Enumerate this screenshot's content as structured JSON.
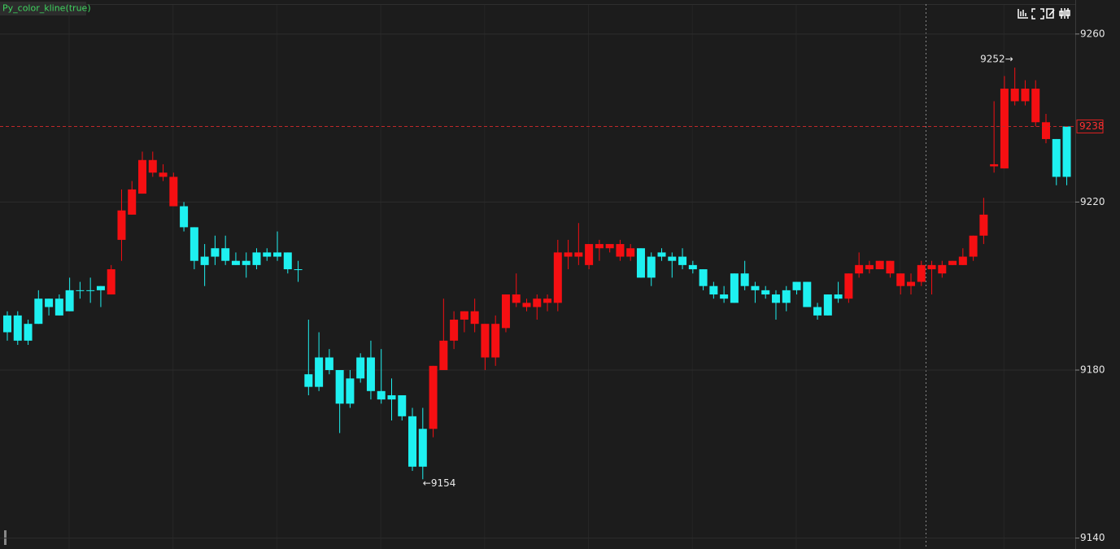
{
  "chart_data": {
    "type": "candlestick",
    "title": "Py_color_kline(true)",
    "up_color": "#f50f12",
    "down_color": "#1ef0f0",
    "open": [
      9193,
      9193,
      9191,
      9197,
      9197,
      9197,
      9199,
      9199,
      9199,
      9200,
      9198,
      9211,
      9217,
      9222,
      9227,
      9226,
      9219,
      9219,
      9214,
      9207,
      9209,
      9209,
      9206,
      9206,
      9208,
      9208,
      9208,
      9208,
      9204,
      9179,
      9183,
      9183,
      9180,
      9178,
      9183,
      9183,
      9175,
      9174,
      9174,
      9169,
      9166,
      9166,
      9180,
      9187,
      9192,
      9191,
      9183,
      9183,
      9190,
      9196,
      9195,
      9195,
      9196,
      9196,
      9207,
      9207,
      9205,
      9209,
      9209,
      9207,
      9207,
      9209,
      9207,
      9208,
      9207,
      9207,
      9205,
      9204,
      9200,
      9198,
      9203,
      9203,
      9200,
      9199,
      9198,
      9199,
      9201,
      9201,
      9195,
      9198,
      9198,
      9197,
      9203,
      9204,
      9204,
      9203,
      9200,
      9200,
      9201,
      9204,
      9203,
      9205,
      9205,
      9207,
      9212,
      9228.5,
      9228,
      9244,
      9244,
      9239,
      9235,
      9235,
      9238
    ],
    "high": [
      9194,
      9194,
      9192,
      9199,
      9197,
      9198,
      9202,
      9201,
      9202,
      9200,
      9205,
      9223,
      9225,
      9232,
      9232,
      9229,
      9227,
      9220,
      9214,
      9210,
      9212,
      9212,
      9208,
      9208,
      9209,
      9209,
      9213,
      9208,
      9206,
      9192,
      9189,
      9185,
      9180,
      9180,
      9184,
      9187,
      9185,
      9178,
      9174,
      9171,
      9171,
      9181,
      9197,
      9194,
      9194,
      9197,
      9191,
      9193,
      9198,
      9203,
      9197,
      9198,
      9198,
      9211,
      9211,
      9215,
      9210,
      9211,
      9210,
      9211,
      9210,
      9209,
      9208,
      9209,
      9208,
      9209,
      9206,
      9204,
      9201,
      9200,
      9203,
      9206,
      9201,
      9200,
      9199,
      9200,
      9201,
      9201,
      9196,
      9198,
      9201,
      9203,
      9208,
      9206,
      9206,
      9206,
      9203,
      9203,
      9206,
      9206,
      9206,
      9206,
      9209,
      9212,
      9221,
      9244,
      9250,
      9252,
      9249,
      9249,
      9241,
      9235,
      9238
    ],
    "low": [
      9187,
      9186,
      9186,
      9191,
      9193,
      9193,
      9194,
      9197,
      9196,
      9195,
      9198,
      9206,
      9217,
      9222,
      9226,
      9225,
      9219,
      9213,
      9204,
      9200,
      9205,
      9205,
      9205,
      9202,
      9204,
      9206,
      9206,
      9203,
      9201,
      9174,
      9175,
      9179,
      9165,
      9171,
      9177,
      9173,
      9172,
      9168,
      9168,
      9156,
      9154,
      9164,
      9180,
      9185,
      9189,
      9189,
      9180,
      9181,
      9189,
      9195,
      9194,
      9192,
      9194,
      9194,
      9204,
      9205,
      9204,
      9206,
      9208,
      9206,
      9206,
      9202,
      9200,
      9206,
      9202,
      9204,
      9203,
      9199,
      9197,
      9196,
      9196,
      9199,
      9196,
      9197,
      9192,
      9194,
      9198,
      9195,
      9192,
      9193,
      9196,
      9196,
      9202,
      9203,
      9204,
      9202,
      9198,
      9198,
      9200,
      9198,
      9202,
      9205,
      9205,
      9206,
      9210,
      9227,
      9228,
      9243,
      9243,
      9238,
      9234,
      9224,
      9224
    ],
    "close": [
      9189,
      9187,
      9187,
      9191,
      9195,
      9193,
      9194,
      9199,
      9199,
      9199,
      9204,
      9218,
      9223,
      9230,
      9230,
      9227,
      9226,
      9214,
      9206,
      9205,
      9207,
      9206,
      9205,
      9205,
      9205,
      9207,
      9207,
      9204,
      9204,
      9176,
      9176,
      9180,
      9172,
      9172,
      9178,
      9175,
      9173,
      9173,
      9169,
      9157,
      9157,
      9181,
      9187,
      9192,
      9194,
      9194,
      9191,
      9191,
      9198,
      9198,
      9196,
      9197,
      9197,
      9208,
      9208,
      9208,
      9210,
      9210,
      9210,
      9210,
      9209,
      9202,
      9202,
      9207,
      9206,
      9205,
      9204,
      9200,
      9198,
      9197,
      9196,
      9200,
      9199,
      9198,
      9196,
      9196,
      9199,
      9195,
      9193,
      9193,
      9197,
      9203,
      9205,
      9205,
      9206,
      9206,
      9203,
      9201,
      9205,
      9205,
      9205,
      9206,
      9207,
      9212,
      9217,
      9229,
      9247,
      9247,
      9247,
      9247,
      9239,
      9226,
      9226
    ],
    "ylim": [
      9137.4,
      9268.1
    ],
    "yticks": [
      9140,
      9180,
      9220,
      9260
    ],
    "last_price": 9238,
    "max_label": {
      "value": 9252,
      "label": "9252→"
    },
    "min_label": {
      "value": 9154,
      "label": "←9154"
    }
  }
}
